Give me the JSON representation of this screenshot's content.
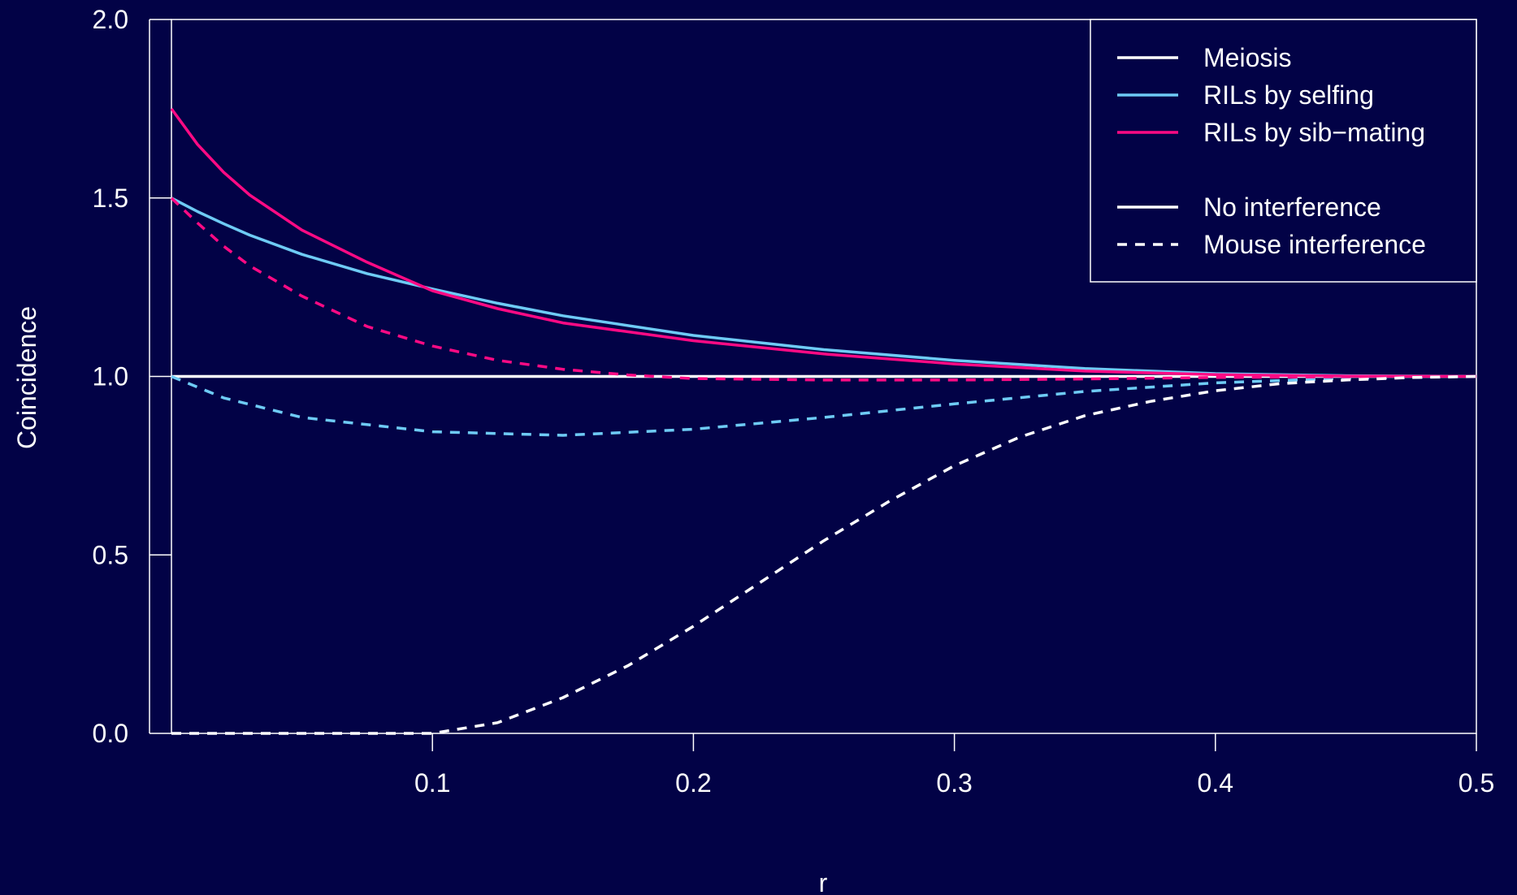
{
  "chart_data": {
    "type": "line",
    "title": "",
    "xlabel": "r",
    "ylabel": "Coincidence",
    "xlim": [
      0,
      0.5
    ],
    "ylim": [
      0,
      2
    ],
    "x_ticks": [
      0.1,
      0.2,
      0.3,
      0.4,
      0.5
    ],
    "x_tick_labels": [
      "0.1",
      "0.2",
      "0.3",
      "0.4",
      "0.5"
    ],
    "y_ticks": [
      0,
      0.5,
      1,
      1.5,
      2
    ],
    "y_tick_labels": [
      "0.0",
      "0.5",
      "1.0",
      "1.5",
      "2.0"
    ],
    "grid": false,
    "legend_position": "top-right",
    "background": "#020246",
    "foreground": "#ffffff",
    "legend": [
      {
        "label": "Meiosis",
        "color": "#ffffff",
        "dash": "solid"
      },
      {
        "label": "RILs by selfing",
        "color": "#6ecbf5",
        "dash": "solid"
      },
      {
        "label": "RILs by sib−mating",
        "color": "#ff0a84",
        "dash": "solid"
      },
      {
        "label": "",
        "color": "#020246",
        "dash": "solid"
      },
      {
        "label": "No interference",
        "color": "#ffffff",
        "dash": "solid"
      },
      {
        "label": "Mouse interference",
        "color": "#ffffff",
        "dash": "dashed"
      }
    ],
    "series": [
      {
        "color": "#ffffff",
        "dash": "solid",
        "x": [
          0.0,
          0.05,
          0.1,
          0.15,
          0.2,
          0.25,
          0.3,
          0.35,
          0.4,
          0.45,
          0.5
        ],
        "y": [
          1.0,
          1.0,
          1.0,
          1.0,
          1.0,
          1.0,
          1.0,
          1.0,
          1.0,
          1.0,
          1.0
        ]
      },
      {
        "color": "#6ecbf5",
        "dash": "solid",
        "x": [
          0.0,
          0.01,
          0.02,
          0.03,
          0.05,
          0.075,
          0.1,
          0.125,
          0.15,
          0.2,
          0.25,
          0.3,
          0.35,
          0.4,
          0.45,
          0.5
        ],
        "y": [
          1.5,
          1.462,
          1.428,
          1.396,
          1.342,
          1.288,
          1.245,
          1.205,
          1.17,
          1.115,
          1.075,
          1.045,
          1.022,
          1.008,
          1.002,
          1.0
        ]
      },
      {
        "color": "#ff0a84",
        "dash": "solid",
        "x": [
          0.0,
          0.01,
          0.02,
          0.03,
          0.05,
          0.075,
          0.1,
          0.125,
          0.15,
          0.2,
          0.25,
          0.3,
          0.35,
          0.4,
          0.45,
          0.5
        ],
        "y": [
          1.75,
          1.65,
          1.572,
          1.508,
          1.41,
          1.32,
          1.24,
          1.19,
          1.15,
          1.1,
          1.063,
          1.035,
          1.015,
          1.005,
          1.001,
          1.0
        ]
      },
      {
        "color": "#6ecbf5",
        "dash": "dashed",
        "x": [
          0.0,
          0.02,
          0.05,
          0.1,
          0.15,
          0.2,
          0.25,
          0.3,
          0.35,
          0.4,
          0.45,
          0.5
        ],
        "y": [
          1.0,
          0.94,
          0.885,
          0.845,
          0.835,
          0.852,
          0.885,
          0.923,
          0.958,
          0.982,
          0.995,
          1.0
        ]
      },
      {
        "color": "#ff0a84",
        "dash": "dashed",
        "x": [
          0.0,
          0.01,
          0.02,
          0.03,
          0.05,
          0.075,
          0.1,
          0.125,
          0.15,
          0.175,
          0.2,
          0.25,
          0.3,
          0.35,
          0.4,
          0.45,
          0.5
        ],
        "y": [
          1.5,
          1.43,
          1.365,
          1.31,
          1.225,
          1.14,
          1.085,
          1.045,
          1.02,
          1.004,
          0.994,
          0.99,
          0.99,
          0.993,
          0.997,
          0.999,
          1.0
        ]
      },
      {
        "color": "#ffffff",
        "dash": "dashed",
        "x": [
          0.0,
          0.05,
          0.1,
          0.125,
          0.15,
          0.175,
          0.2,
          0.225,
          0.25,
          0.275,
          0.3,
          0.325,
          0.35,
          0.375,
          0.4,
          0.425,
          0.45,
          0.475,
          0.5
        ],
        "y": [
          0.0,
          0.0,
          0.0,
          0.03,
          0.1,
          0.19,
          0.3,
          0.42,
          0.54,
          0.65,
          0.75,
          0.83,
          0.89,
          0.93,
          0.96,
          0.98,
          0.99,
          0.997,
          1.0
        ]
      }
    ]
  }
}
